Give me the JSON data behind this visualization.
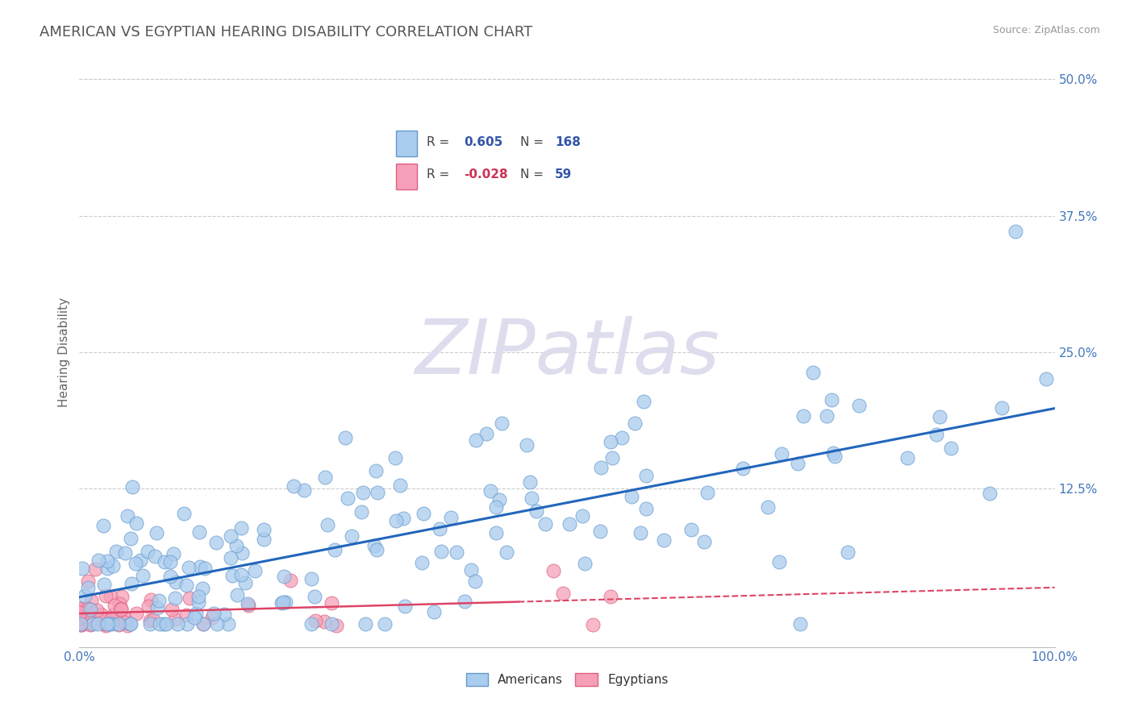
{
  "title": "AMERICAN VS EGYPTIAN HEARING DISABILITY CORRELATION CHART",
  "source": "Source: ZipAtlas.com",
  "ylabel": "Hearing Disability",
  "ytick_labels": [
    "12.5%",
    "25.0%",
    "37.5%",
    "50.0%"
  ],
  "ytick_values": [
    0.125,
    0.25,
    0.375,
    0.5
  ],
  "xmin": 0.0,
  "xmax": 1.0,
  "ymin": -0.02,
  "ymax": 0.52,
  "american_color": "#aaccee",
  "american_edge": "#6699cc",
  "egyptian_color": "#f5a0b8",
  "egyptian_edge": "#e06080",
  "american_line_color": "#2266bb",
  "egyptian_line_color": "#dd4466",
  "legend_text_color": "#3355aa",
  "legend_R_neg_color": "#cc3355",
  "watermark_color": "#ddddee",
  "background_color": "#ffffff",
  "grid_color": "#cccccc",
  "title_color": "#555555",
  "title_fontsize": 13,
  "axis_label_color": "#4477bb",
  "tick_label_color": "#4477bb"
}
